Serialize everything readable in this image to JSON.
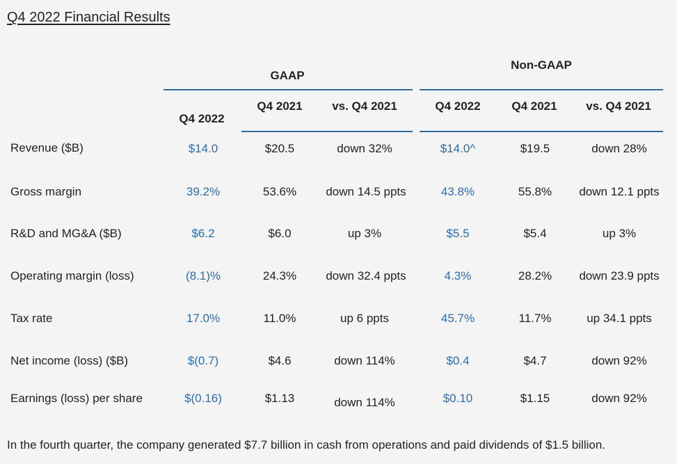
{
  "title": "Q4 2022 Financial Results",
  "groups": {
    "gaap": "GAAP",
    "non_gaap": "Non-GAAP"
  },
  "columns": {
    "gaap": [
      "Q4 2022",
      "Q4 2021",
      "vs. Q4 2021"
    ],
    "non_gaap": [
      "Q4 2022",
      "Q4 2021",
      "vs. Q4 2021"
    ]
  },
  "rows": [
    {
      "label": "Revenue ($B)",
      "gaap": [
        "$14.0",
        "$20.5",
        "down 32%"
      ],
      "non_gaap": [
        "$14.0^",
        "$19.5",
        "down 28%"
      ]
    },
    {
      "label": "Gross margin",
      "gaap": [
        "39.2%",
        "53.6%",
        "down 14.5 ppts"
      ],
      "non_gaap": [
        "43.8%",
        "55.8%",
        "down 12.1 ppts"
      ]
    },
    {
      "label": "R&D and MG&A ($B)",
      "gaap": [
        "$6.2",
        "$6.0",
        "up 3%"
      ],
      "non_gaap": [
        "$5.5",
        "$5.4",
        "up 3%"
      ]
    },
    {
      "label": "Operating margin (loss)",
      "gaap": [
        "(8.1)%",
        "24.3%",
        "down 32.4 ppts"
      ],
      "non_gaap": [
        "4.3%",
        "28.2%",
        "down 23.9 ppts"
      ]
    },
    {
      "label": "Tax rate",
      "gaap": [
        "17.0%",
        "11.0%",
        "up 6 ppts"
      ],
      "non_gaap": [
        "45.7%",
        "11.7%",
        "up 34.1 ppts"
      ]
    },
    {
      "label": "Net income (loss) ($B)",
      "gaap": [
        "$(0.7)",
        "$4.6",
        "down 114%"
      ],
      "non_gaap": [
        "$0.4",
        "$4.7",
        "down 92%"
      ]
    },
    {
      "label": "Earnings (loss) per share",
      "gaap": [
        "$(0.16)",
        "$1.13",
        "down 114%"
      ],
      "non_gaap": [
        "$0.10",
        "$1.15",
        "down 92%"
      ]
    }
  ],
  "footnote": "In the fourth quarter, the company generated $7.7 billion in cash from operations and paid dividends of $1.5 billion.",
  "colors": {
    "accent": "#2b6cb0",
    "rule": "#2f6b9a",
    "text": "#222222",
    "background": "#f4f4f4"
  }
}
